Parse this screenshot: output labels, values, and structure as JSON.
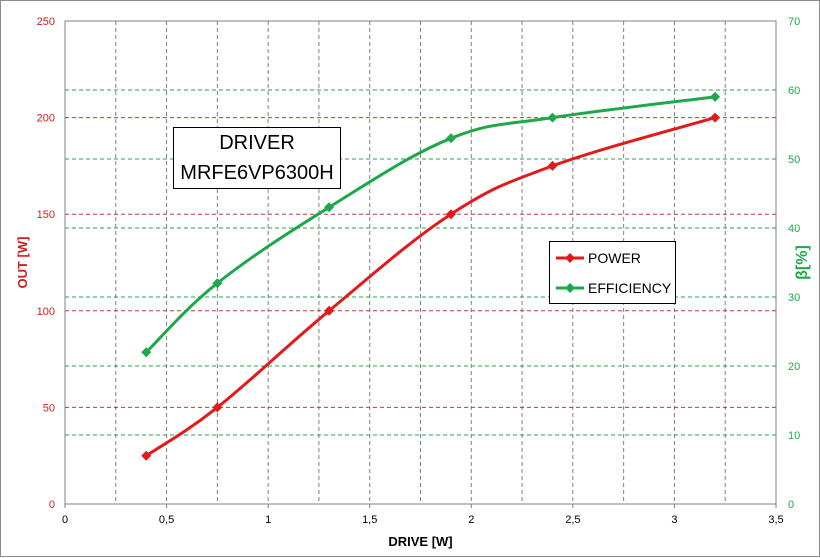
{
  "chart_data": {
    "type": "line",
    "annotation": [
      "DRIVER",
      "MRFE6VP6300H"
    ],
    "xlabel": "DRIVE [W]",
    "ylabel": "OUT [W]",
    "y2label": "β[%]",
    "xlim": [
      0,
      3.5
    ],
    "ylim": [
      0,
      250
    ],
    "y2lim": [
      0,
      70
    ],
    "x_ticks": [
      "0",
      "0,5",
      "1",
      "1,5",
      "2",
      "2,5",
      "3",
      "3,5"
    ],
    "y_ticks": [
      "0",
      "50",
      "100",
      "150",
      "200",
      "250"
    ],
    "y2_ticks": [
      "0",
      "10",
      "20",
      "30",
      "40",
      "50",
      "60",
      "70"
    ],
    "grid": true,
    "legend_position": "center-right",
    "series": [
      {
        "name": "POWER",
        "axis": "left",
        "color": "#e11b1b",
        "x": [
          0.4,
          0.75,
          1.3,
          1.9,
          2.4,
          3.2
        ],
        "values": [
          25,
          50,
          100,
          150,
          175,
          200
        ]
      },
      {
        "name": "EFFICIENCY",
        "axis": "right",
        "color": "#1fa84a",
        "x": [
          0.4,
          0.75,
          1.3,
          1.9,
          2.4,
          3.2
        ],
        "values": [
          22,
          32,
          43,
          53,
          56,
          59
        ]
      }
    ],
    "colors": {
      "left_axis": "#cc1f1f",
      "right_axis": "#1fa84a",
      "grid_red": "#c0392b",
      "grid_green": "#1fa84a",
      "grid_gray": "#808080"
    }
  }
}
